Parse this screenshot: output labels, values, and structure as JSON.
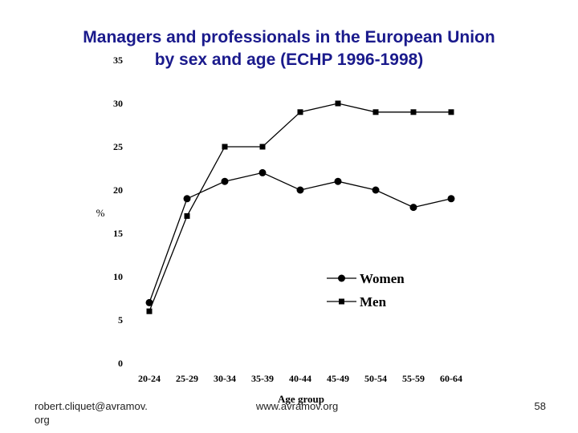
{
  "title": {
    "line1": "Managers and professionals in the European Union",
    "line2": "by sex and age (ECHP 1996-1998)"
  },
  "chart_data": {
    "type": "line",
    "categories": [
      "20-24",
      "25-29",
      "30-34",
      "35-39",
      "40-44",
      "45-49",
      "50-54",
      "55-59",
      "60-64"
    ],
    "series": [
      {
        "name": "Women",
        "marker": "circle",
        "values": [
          7,
          19,
          21,
          22,
          20,
          21,
          20,
          18,
          19
        ]
      },
      {
        "name": "Men",
        "marker": "square",
        "values": [
          6,
          17,
          25,
          25,
          29,
          30,
          29,
          29,
          29
        ]
      }
    ],
    "xlabel": "Age group",
    "ylabel": "%",
    "ylim": [
      0,
      35
    ],
    "yticks": [
      0,
      5,
      10,
      15,
      20,
      25,
      30,
      35
    ],
    "grid": false,
    "legend": "bottom-right",
    "colors": {
      "line": "#000000",
      "title": "#1a1a8c"
    }
  },
  "footer": {
    "left": "robert.cliquet@avramov.\norg",
    "center": "www.avramov.org",
    "page": "58"
  }
}
